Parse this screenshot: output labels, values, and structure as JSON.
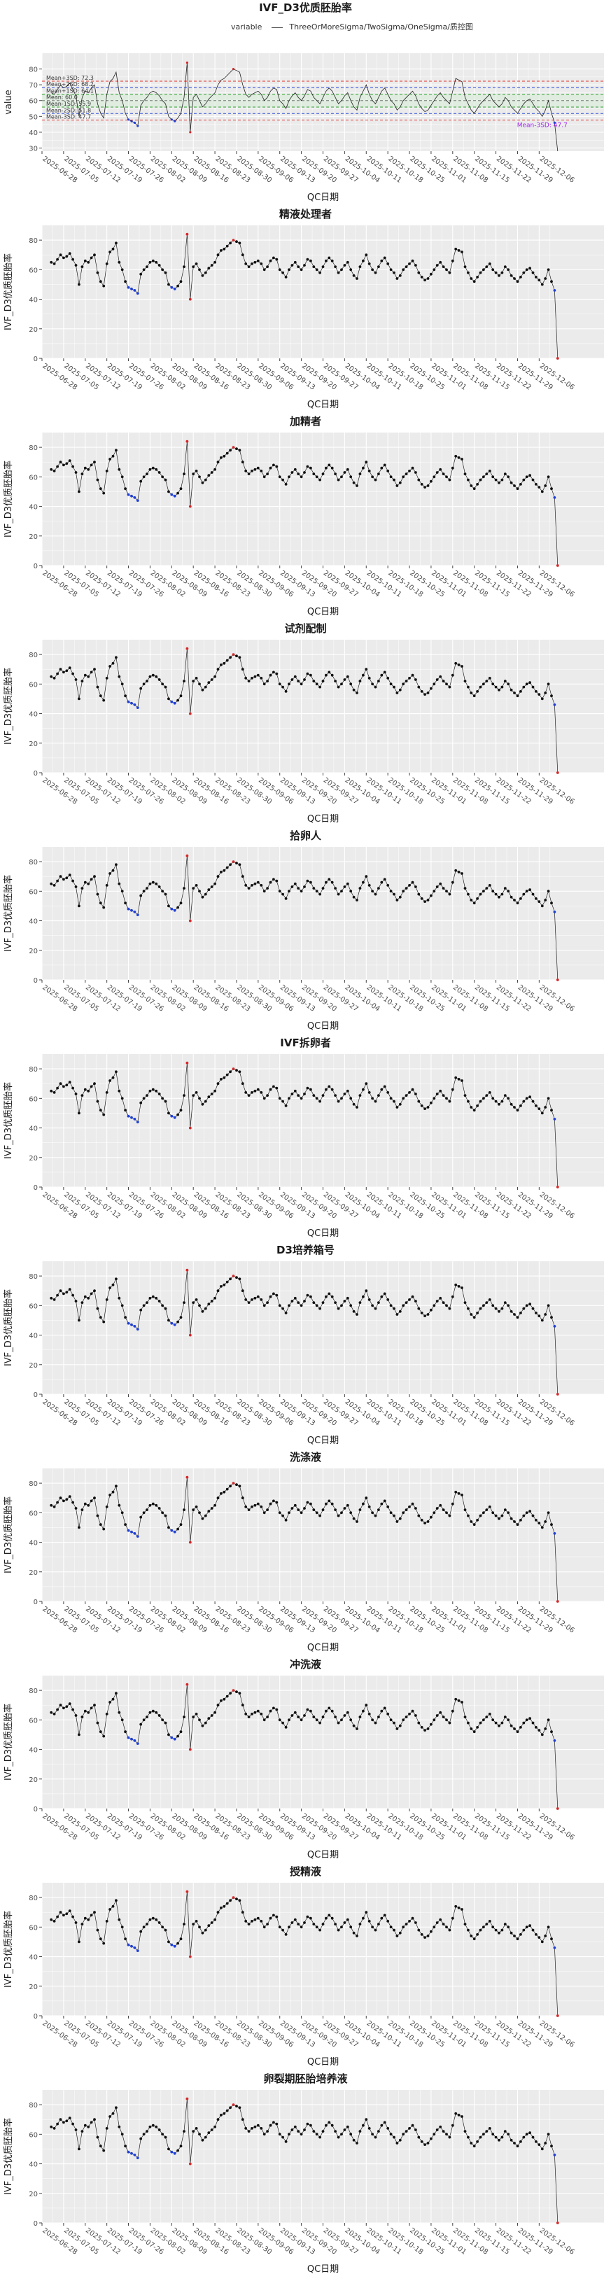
{
  "figure": {
    "title": "IVF_D3优质胚胎率",
    "legend_title": "variable",
    "legend_text": "ThreeOrMoreSigma/TwoSigma/OneSigma/质控图"
  },
  "colors": {
    "panel_bg": "#ebebeb",
    "grid_major": "#ffffff",
    "line": "#222222",
    "point": "#111111",
    "out_red": "#d62728",
    "out_blue": "#1f3fd6",
    "out_purple": "#a020f0",
    "ref_red": "#e0302a",
    "ref_blue": "#2b4bd9",
    "ref_green": "#2ca02c",
    "ref_grey": "#777777"
  },
  "shared_axes": {
    "xlabel": "QC日期",
    "ylabel": "IVF_D3优质胚胎率",
    "ylim": [
      0,
      90
    ],
    "yticks": [
      0,
      20,
      40,
      60,
      80
    ],
    "xlim_index": [
      -3,
      179
    ],
    "xticks": [
      {
        "label": "2025-06-28",
        "index": -3
      },
      {
        "label": "2025-07-05",
        "index": 4
      },
      {
        "label": "2025-07-12",
        "index": 11
      },
      {
        "label": "2025-07-19",
        "index": 18
      },
      {
        "label": "2025-07-26",
        "index": 25
      },
      {
        "label": "2025-08-02",
        "index": 32
      },
      {
        "label": "2025-08-09",
        "index": 39
      },
      {
        "label": "2025-08-16",
        "index": 46
      },
      {
        "label": "2025-08-23",
        "index": 53
      },
      {
        "label": "2025-08-30",
        "index": 60
      },
      {
        "label": "2025-09-06",
        "index": 67
      },
      {
        "label": "2025-09-13",
        "index": 74
      },
      {
        "label": "2025-09-20",
        "index": 81
      },
      {
        "label": "2025-09-27",
        "index": 88
      },
      {
        "label": "2025-10-04",
        "index": 95
      },
      {
        "label": "2025-10-11",
        "index": 102
      },
      {
        "label": "2025-10-18",
        "index": 109
      },
      {
        "label": "2025-10-25",
        "index": 116
      },
      {
        "label": "2025-11-01",
        "index": 123
      },
      {
        "label": "2025-11-08",
        "index": 130
      },
      {
        "label": "2025-11-15",
        "index": 137
      },
      {
        "label": "2025-11-22",
        "index": 144
      },
      {
        "label": "2025-11-29",
        "index": 151
      },
      {
        "label": "2025-12-06",
        "index": 158
      }
    ]
  },
  "chart_data": {
    "type": "line",
    "x_start": "2025-07-01",
    "y": [
      65,
      64,
      67,
      70,
      68,
      69,
      71,
      67,
      63,
      50,
      62,
      66,
      65,
      68,
      70,
      58,
      52,
      49,
      64,
      72,
      74,
      78,
      65,
      60,
      52,
      48,
      47,
      46,
      44,
      57,
      60,
      62,
      65,
      66,
      65,
      63,
      60,
      58,
      50,
      48,
      47,
      49,
      52,
      62,
      84,
      40,
      62,
      64,
      60,
      56,
      58,
      61,
      63,
      65,
      70,
      73,
      74,
      76,
      78,
      80,
      79,
      78,
      70,
      64,
      62,
      64,
      65,
      66,
      64,
      60,
      62,
      66,
      68,
      67,
      60,
      58,
      55,
      60,
      63,
      65,
      62,
      60,
      63,
      67,
      66,
      62,
      60,
      58,
      62,
      66,
      68,
      66,
      62,
      58,
      60,
      63,
      65,
      60,
      56,
      54,
      62,
      66,
      70,
      64,
      60,
      58,
      62,
      66,
      68,
      64,
      60,
      58,
      54,
      56,
      60,
      62,
      64,
      66,
      63,
      58,
      55,
      53,
      54,
      57,
      60,
      63,
      65,
      62,
      60,
      58,
      66,
      74,
      73,
      72,
      62,
      58,
      54,
      52,
      55,
      58,
      60,
      62,
      64,
      60,
      58,
      56,
      58,
      62,
      60,
      56,
      54,
      52,
      55,
      58,
      60,
      61,
      58,
      55,
      53,
      50,
      54,
      60,
      52,
      46,
      0
    ],
    "panels": [
      {
        "title": "",
        "type": "overview",
        "ylim": [
          28,
          90
        ],
        "yticks": [
          30,
          40,
          50,
          60,
          70,
          80
        ],
        "ylabel": "value",
        "ref_lines": [
          {
            "label": "Mean+3SD: 72.3",
            "value": 72.3,
            "color": "ref_red"
          },
          {
            "label": "Mean+2SD: 68.2",
            "value": 68.2,
            "color": "ref_blue"
          },
          {
            "label": "Mean+1SD: 64.1",
            "value": 64.1,
            "color": "ref_green"
          },
          {
            "label": "Mean: 60.0",
            "value": 60.0,
            "color": "ref_grey"
          },
          {
            "label": "Mean-1SD: 55.9",
            "value": 55.9,
            "color": "ref_green"
          },
          {
            "label": "Mean-2SD: 51.8",
            "value": 51.8,
            "color": "ref_blue"
          },
          {
            "label": "Mean-3SD: 47.7",
            "value": 47.7,
            "color": "ref_red"
          }
        ],
        "annotation": "Mean-3SD: 47.7"
      },
      {
        "title": "精液处理者",
        "type": "qc"
      },
      {
        "title": "加精者",
        "type": "qc"
      },
      {
        "title": "试剂配制",
        "type": "qc"
      },
      {
        "title": "拾卵人",
        "type": "qc"
      },
      {
        "title": "IVF拆卵者",
        "type": "qc"
      },
      {
        "title": "D3培养箱号",
        "type": "qc"
      },
      {
        "title": "洗涤液",
        "type": "qc"
      },
      {
        "title": "冲洗液",
        "type": "qc"
      },
      {
        "title": "授精液",
        "type": "qc"
      },
      {
        "title": "卵裂期胚胎培养液",
        "type": "qc"
      }
    ]
  }
}
